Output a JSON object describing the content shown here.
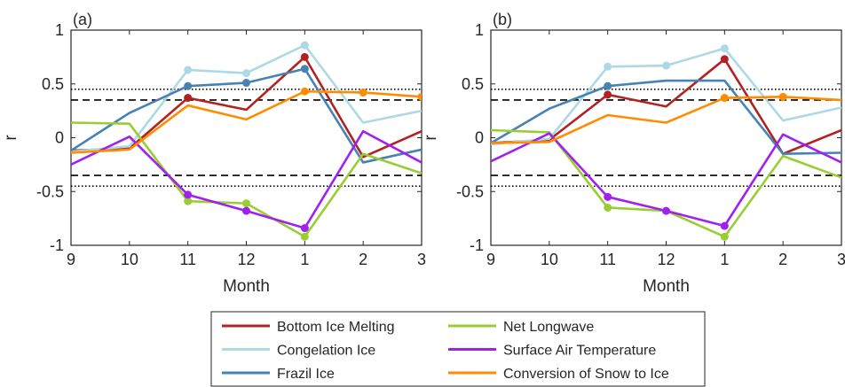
{
  "chart_data": [
    {
      "type": "line",
      "panel_label": "(a)",
      "x": [
        9,
        10,
        11,
        12,
        1,
        2,
        3
      ],
      "xticklabels": [
        "9",
        "10",
        "11",
        "12",
        "1",
        "2",
        "3"
      ],
      "xlabel": "Month",
      "ylabel": "r",
      "ylim": [
        -1,
        1
      ],
      "yticks": [
        -1,
        -0.5,
        0,
        0.5,
        1
      ],
      "yticklabels": [
        "-1",
        "-0.5",
        "0",
        "0.5",
        "1"
      ],
      "reference_lines": [
        {
          "value": 0.35,
          "style": "dashed"
        },
        {
          "value": -0.35,
          "style": "dashed"
        },
        {
          "value": 0.45,
          "style": "dotted"
        },
        {
          "value": -0.45,
          "style": "dotted"
        }
      ],
      "series": [
        {
          "name": "Bottom Ice Melting",
          "color": "#b22222",
          "values": [
            -0.12,
            -0.1,
            0.37,
            0.26,
            0.75,
            -0.18,
            0.06
          ],
          "marked": [
            false,
            false,
            true,
            false,
            true,
            false,
            false
          ]
        },
        {
          "name": "Congelation Ice",
          "color": "#add8e6",
          "values": [
            -0.13,
            -0.08,
            0.63,
            0.6,
            0.86,
            0.14,
            0.25
          ],
          "marked": [
            false,
            false,
            true,
            true,
            true,
            false,
            false
          ]
        },
        {
          "name": "Frazil Ice",
          "color": "#4682b4",
          "values": [
            -0.12,
            0.23,
            0.48,
            0.51,
            0.64,
            -0.23,
            -0.11
          ],
          "marked": [
            false,
            false,
            true,
            true,
            true,
            false,
            false
          ]
        },
        {
          "name": "Net Longwave",
          "color": "#9acd32",
          "values": [
            0.14,
            0.13,
            -0.59,
            -0.61,
            -0.92,
            -0.15,
            -0.33
          ],
          "marked": [
            false,
            false,
            true,
            true,
            true,
            false,
            false
          ]
        },
        {
          "name": "Surface Air Temperature",
          "color": "#a020f0",
          "values": [
            -0.25,
            0.01,
            -0.53,
            -0.68,
            -0.84,
            0.06,
            -0.23
          ],
          "marked": [
            false,
            false,
            true,
            true,
            true,
            false,
            false
          ]
        },
        {
          "name": "Conversion of Snow to Ice",
          "color": "#ff8c00",
          "values": [
            -0.14,
            -0.11,
            0.3,
            0.17,
            0.43,
            0.42,
            0.38
          ],
          "marked": [
            false,
            false,
            false,
            false,
            true,
            true,
            true
          ]
        }
      ]
    },
    {
      "type": "line",
      "panel_label": "(b)",
      "x": [
        9,
        10,
        11,
        12,
        1,
        2,
        3
      ],
      "xticklabels": [
        "9",
        "10",
        "11",
        "12",
        "1",
        "2",
        "3"
      ],
      "xlabel": "Month",
      "ylabel": "r",
      "ylim": [
        -1,
        1
      ],
      "yticks": [
        -1,
        -0.5,
        0,
        0.5,
        1
      ],
      "yticklabels": [
        "-1",
        "-0.5",
        "0",
        "0.5",
        "1"
      ],
      "reference_lines": [
        {
          "value": 0.35,
          "style": "dashed"
        },
        {
          "value": -0.35,
          "style": "dashed"
        },
        {
          "value": 0.45,
          "style": "dotted"
        },
        {
          "value": -0.45,
          "style": "dotted"
        }
      ],
      "series": [
        {
          "name": "Bottom Ice Melting",
          "color": "#b22222",
          "values": [
            -0.05,
            -0.02,
            0.4,
            0.29,
            0.73,
            -0.15,
            0.07
          ],
          "marked": [
            false,
            false,
            true,
            false,
            true,
            false,
            false
          ]
        },
        {
          "name": "Congelation Ice",
          "color": "#add8e6",
          "values": [
            -0.06,
            -0.01,
            0.66,
            0.67,
            0.83,
            0.16,
            0.28
          ],
          "marked": [
            false,
            false,
            true,
            true,
            true,
            false,
            false
          ]
        },
        {
          "name": "Frazil Ice",
          "color": "#4682b4",
          "values": [
            -0.05,
            0.27,
            0.48,
            0.53,
            0.53,
            -0.15,
            -0.14
          ],
          "marked": [
            false,
            false,
            true,
            false,
            false,
            false,
            false
          ]
        },
        {
          "name": "Net Longwave",
          "color": "#9acd32",
          "values": [
            0.07,
            0.05,
            -0.65,
            -0.68,
            -0.92,
            -0.17,
            -0.37
          ],
          "marked": [
            false,
            false,
            true,
            true,
            true,
            false,
            false
          ]
        },
        {
          "name": "Surface Air Temperature",
          "color": "#a020f0",
          "values": [
            -0.22,
            0.04,
            -0.55,
            -0.68,
            -0.82,
            0.03,
            -0.23
          ],
          "marked": [
            false,
            false,
            true,
            true,
            true,
            false,
            false
          ]
        },
        {
          "name": "Conversion of Snow to Ice",
          "color": "#ff8c00",
          "values": [
            -0.05,
            -0.04,
            0.21,
            0.14,
            0.37,
            0.38,
            0.35
          ],
          "marked": [
            false,
            false,
            false,
            false,
            true,
            true,
            false
          ]
        }
      ]
    }
  ],
  "legend": {
    "placement": "bottom-center",
    "entries": [
      {
        "label": "Bottom Ice Melting",
        "color": "#b22222"
      },
      {
        "label": "Net Longwave",
        "color": "#9acd32"
      },
      {
        "label": "Congelation Ice",
        "color": "#add8e6"
      },
      {
        "label": "Surface Air Temperature",
        "color": "#a020f0"
      },
      {
        "label": "Frazil Ice",
        "color": "#4682b4"
      },
      {
        "label": "Conversion of Snow to Ice",
        "color": "#ff8c00"
      }
    ]
  }
}
